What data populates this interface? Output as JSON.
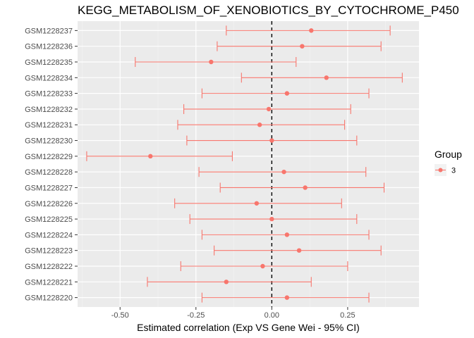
{
  "chart_data": {
    "type": "forest",
    "title": "KEGG_METABOLISM_OF_XENOBIOTICS_BY_CYTOCHROME_P450",
    "xlabel": "Estimated correlation (Exp VS Gene Wei - 95% CI)",
    "ylabel": "",
    "xlim": [
      -0.64,
      0.485
    ],
    "x_ticks": [
      -0.5,
      -0.25,
      0.0,
      0.25
    ],
    "x_tick_labels": [
      "-0.50",
      "-0.25",
      "0.00",
      "0.25"
    ],
    "reference_line": 0,
    "grid": true,
    "legend": {
      "title": "Group",
      "position": "right",
      "entries": [
        {
          "label": "3",
          "color": "#F8766D"
        }
      ]
    },
    "series": [
      {
        "name": "3",
        "color": "#F8766D",
        "points": [
          {
            "label": "GSM1228237",
            "estimate": 0.13,
            "lower": -0.15,
            "upper": 0.39
          },
          {
            "label": "GSM1228236",
            "estimate": 0.1,
            "lower": -0.18,
            "upper": 0.36
          },
          {
            "label": "GSM1228235",
            "estimate": -0.2,
            "lower": -0.45,
            "upper": 0.08
          },
          {
            "label": "GSM1228234",
            "estimate": 0.18,
            "lower": -0.1,
            "upper": 0.43
          },
          {
            "label": "GSM1228233",
            "estimate": 0.05,
            "lower": -0.23,
            "upper": 0.32
          },
          {
            "label": "GSM1228232",
            "estimate": -0.01,
            "lower": -0.29,
            "upper": 0.26
          },
          {
            "label": "GSM1228231",
            "estimate": -0.04,
            "lower": -0.31,
            "upper": 0.24
          },
          {
            "label": "GSM1228230",
            "estimate": 0.0,
            "lower": -0.28,
            "upper": 0.28
          },
          {
            "label": "GSM1228229",
            "estimate": -0.4,
            "lower": -0.61,
            "upper": -0.13
          },
          {
            "label": "GSM1228228",
            "estimate": 0.04,
            "lower": -0.24,
            "upper": 0.31
          },
          {
            "label": "GSM1228227",
            "estimate": 0.11,
            "lower": -0.17,
            "upper": 0.37
          },
          {
            "label": "GSM1228226",
            "estimate": -0.05,
            "lower": -0.32,
            "upper": 0.23
          },
          {
            "label": "GSM1228225",
            "estimate": 0.0,
            "lower": -0.27,
            "upper": 0.28
          },
          {
            "label": "GSM1228224",
            "estimate": 0.05,
            "lower": -0.23,
            "upper": 0.32
          },
          {
            "label": "GSM1228223",
            "estimate": 0.09,
            "lower": -0.19,
            "upper": 0.36
          },
          {
            "label": "GSM1228222",
            "estimate": -0.03,
            "lower": -0.3,
            "upper": 0.25
          },
          {
            "label": "GSM1228221",
            "estimate": -0.15,
            "lower": -0.41,
            "upper": 0.13
          },
          {
            "label": "GSM1228220",
            "estimate": 0.05,
            "lower": -0.23,
            "upper": 0.32
          }
        ]
      }
    ]
  }
}
